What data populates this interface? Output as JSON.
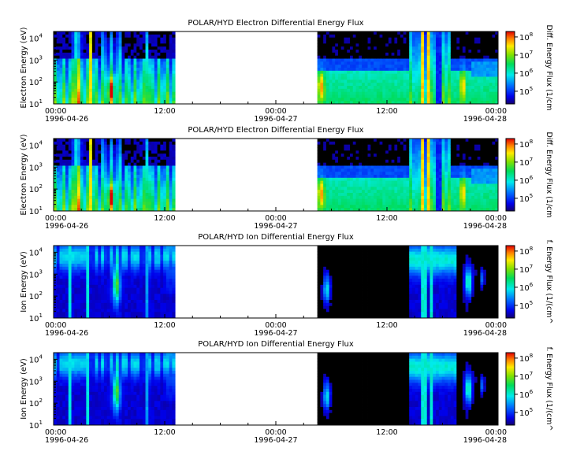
{
  "chart_data": [
    {
      "type": "heatmap",
      "title": "POLAR/HYD  Electron Differential Energy Flux",
      "ylabel": "Electron Energy (eV)",
      "zlabel": "Diff. Energy Flux (1/cm",
      "yscale": "log",
      "ylim": [
        10,
        20000
      ],
      "y_ticks": [
        "10",
        "10",
        "10",
        "10"
      ],
      "y_tick_exponents": [
        "1",
        "2",
        "3",
        "4"
      ],
      "x_ticks": [
        {
          "time": "00:00",
          "date": "1996-04-26"
        },
        {
          "time": "12:00",
          "date": ""
        },
        {
          "time": "00:00",
          "date": "1996-04-27"
        },
        {
          "time": "12:00",
          "date": ""
        },
        {
          "time": "00:00",
          "date": "1996-04-28"
        }
      ],
      "data_gaps_hours": [
        [
          13.2,
          28.5
        ]
      ],
      "colorbar": {
        "scale": "log",
        "zlim": [
          20000,
          200000000
        ],
        "ticks": [
          "10",
          "10",
          "10",
          "10"
        ],
        "tick_exponents": [
          "5",
          "6",
          "7",
          "8"
        ]
      }
    },
    {
      "type": "heatmap",
      "title": "POLAR/HYD  Electron Differential Energy Flux",
      "ylabel": "Electron Energy (eV)",
      "zlabel": "Diff. Energy Flux (1/cm",
      "yscale": "log",
      "ylim": [
        10,
        20000
      ],
      "y_ticks": [
        "10",
        "10",
        "10",
        "10"
      ],
      "y_tick_exponents": [
        "1",
        "2",
        "3",
        "4"
      ],
      "x_ticks": [
        {
          "time": "00:00",
          "date": "1996-04-26"
        },
        {
          "time": "12:00",
          "date": ""
        },
        {
          "time": "00:00",
          "date": "1996-04-27"
        },
        {
          "time": "12:00",
          "date": ""
        },
        {
          "time": "00:00",
          "date": "1996-04-28"
        }
      ],
      "data_gaps_hours": [
        [
          13.2,
          28.5
        ]
      ],
      "colorbar": {
        "scale": "log",
        "zlim": [
          20000,
          200000000
        ],
        "ticks": [
          "10",
          "10",
          "10",
          "10"
        ],
        "tick_exponents": [
          "5",
          "6",
          "7",
          "8"
        ]
      }
    },
    {
      "type": "heatmap",
      "title": "POLAR/HYD  Ion Differential Energy Flux",
      "ylabel": "Ion Energy (eV)",
      "zlabel": "f. Energy Flux (1/(cm^",
      "yscale": "log",
      "ylim": [
        10,
        20000
      ],
      "y_ticks": [
        "10",
        "10",
        "10",
        "10"
      ],
      "y_tick_exponents": [
        "1",
        "2",
        "3",
        "4"
      ],
      "x_ticks": [
        {
          "time": "00:00",
          "date": "1996-04-26"
        },
        {
          "time": "12:00",
          "date": ""
        },
        {
          "time": "00:00",
          "date": "1996-04-27"
        },
        {
          "time": "12:00",
          "date": ""
        },
        {
          "time": "00:00",
          "date": "1996-04-28"
        }
      ],
      "data_gaps_hours": [
        [
          13.2,
          28.5
        ]
      ],
      "colorbar": {
        "scale": "log",
        "zlim": [
          20000,
          200000000
        ],
        "ticks": [
          "10",
          "10",
          "10",
          "10"
        ],
        "tick_exponents": [
          "5",
          "6",
          "7",
          "8"
        ]
      }
    },
    {
      "type": "heatmap",
      "title": "POLAR/HYD  Ion Differential Energy Flux",
      "ylabel": "Ion Energy (eV)",
      "zlabel": "f. Energy Flux (1/(cm^",
      "yscale": "log",
      "ylim": [
        10,
        20000
      ],
      "y_ticks": [
        "10",
        "10",
        "10",
        "10"
      ],
      "y_tick_exponents": [
        "1",
        "2",
        "3",
        "4"
      ],
      "x_ticks": [
        {
          "time": "00:00",
          "date": "1996-04-26"
        },
        {
          "time": "12:00",
          "date": ""
        },
        {
          "time": "00:00",
          "date": "1996-04-27"
        },
        {
          "time": "12:00",
          "date": ""
        },
        {
          "time": "00:00",
          "date": "1996-04-28"
        }
      ],
      "data_gaps_hours": [
        [
          13.2,
          28.5
        ]
      ],
      "colorbar": {
        "scale": "log",
        "zlim": [
          20000,
          200000000
        ],
        "ticks": [
          "10",
          "10",
          "10",
          "10"
        ],
        "tick_exponents": [
          "5",
          "6",
          "7",
          "8"
        ]
      }
    }
  ]
}
